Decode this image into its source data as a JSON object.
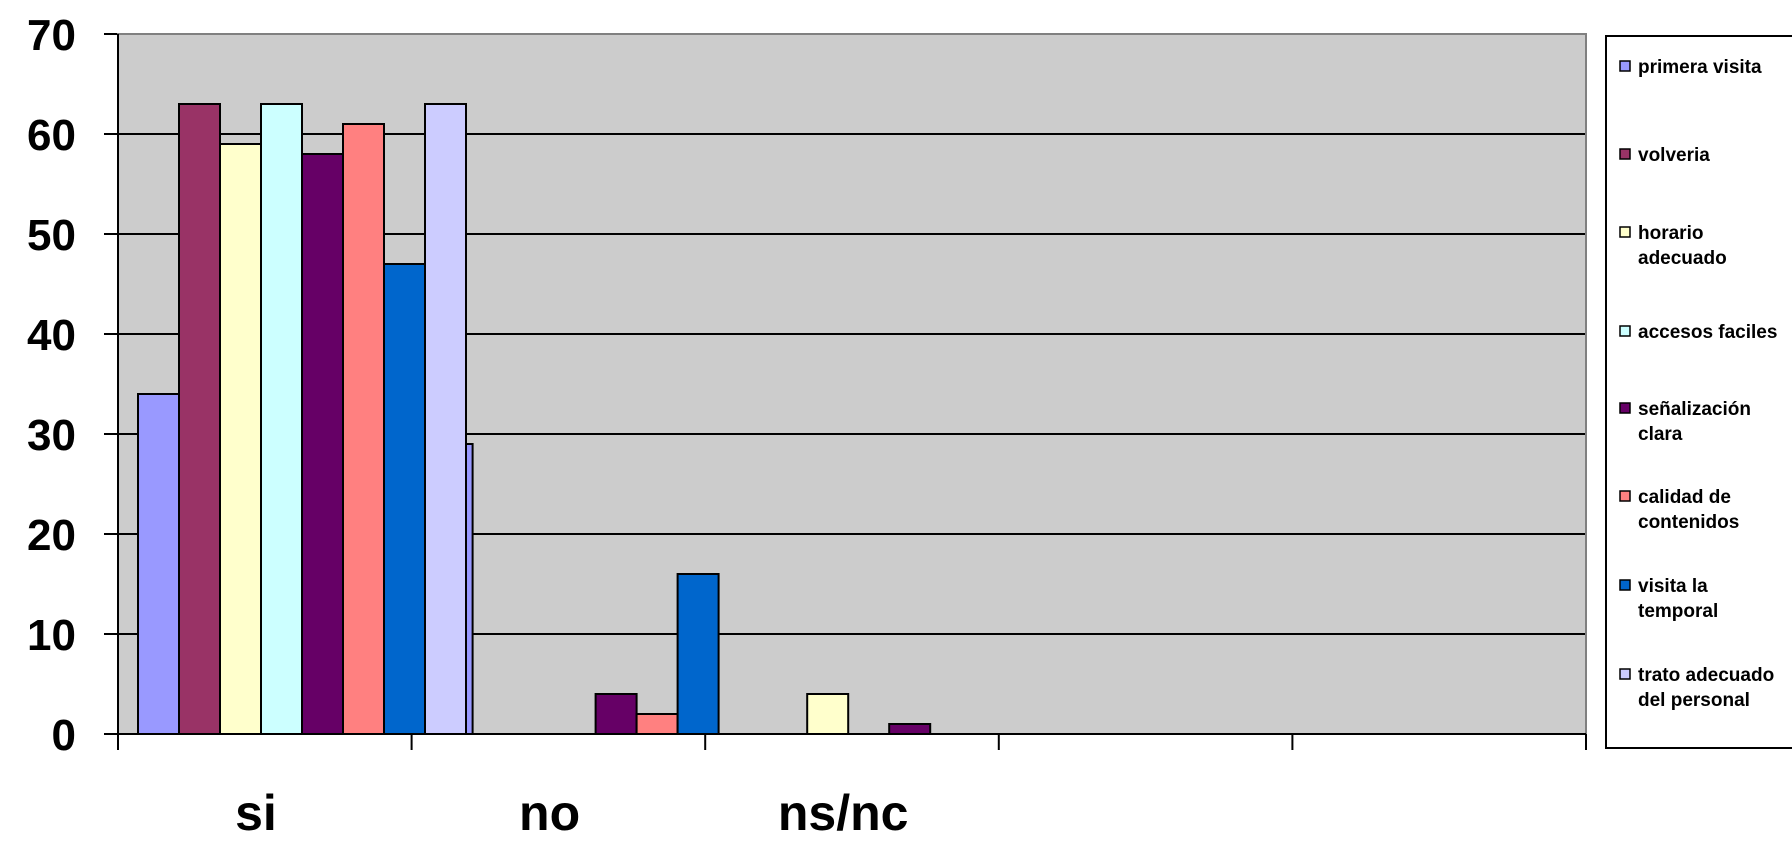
{
  "chart_data": {
    "type": "bar",
    "categories": [
      "si",
      "no",
      "ns/nc",
      "",
      ""
    ],
    "ylim": [
      0,
      70
    ],
    "yticks": [
      0,
      10,
      20,
      30,
      40,
      50,
      60,
      70
    ],
    "grid": true,
    "plot_background": "#CCCCCC",
    "legend_position": "right",
    "series": [
      {
        "name": "primera visita",
        "color": "#9999FF",
        "values": [
          34,
          29,
          0,
          0,
          0
        ]
      },
      {
        "name": "volveria",
        "color": "#993366",
        "values": [
          63,
          0,
          0,
          0,
          0
        ]
      },
      {
        "name": "horario adecuado",
        "color": "#FFFFCC",
        "values": [
          59,
          0,
          4,
          0,
          0
        ]
      },
      {
        "name": "accesos faciles",
        "color": "#CCFFFF",
        "values": [
          63,
          0,
          0,
          0,
          0
        ]
      },
      {
        "name": "señalización clara",
        "color": "#660066",
        "values": [
          58,
          4,
          1,
          0,
          0
        ]
      },
      {
        "name": "calidad de contenidos",
        "color": "#FF8080",
        "values": [
          61,
          2,
          0,
          0,
          0
        ]
      },
      {
        "name": "visita la temporal",
        "color": "#0066CC",
        "values": [
          47,
          16,
          0,
          0,
          0
        ]
      },
      {
        "name": "trato adecuado del personal",
        "color": "#CCCCFF",
        "values": [
          63,
          0,
          0,
          0,
          0
        ]
      }
    ]
  }
}
